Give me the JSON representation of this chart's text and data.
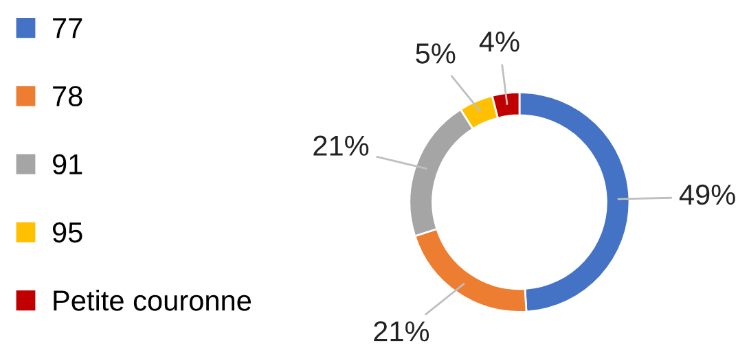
{
  "chart_data": {
    "type": "donut",
    "categories": [
      "77",
      "78",
      "91",
      "95",
      "Petite couronne"
    ],
    "values": [
      49,
      21,
      21,
      5,
      4
    ],
    "colors": [
      "#4472c4",
      "#ed7d31",
      "#a5a5a5",
      "#ffc000",
      "#c00000"
    ],
    "value_labels": [
      "49%",
      "21%",
      "21%",
      "5%",
      "4%"
    ],
    "legend": "left"
  }
}
